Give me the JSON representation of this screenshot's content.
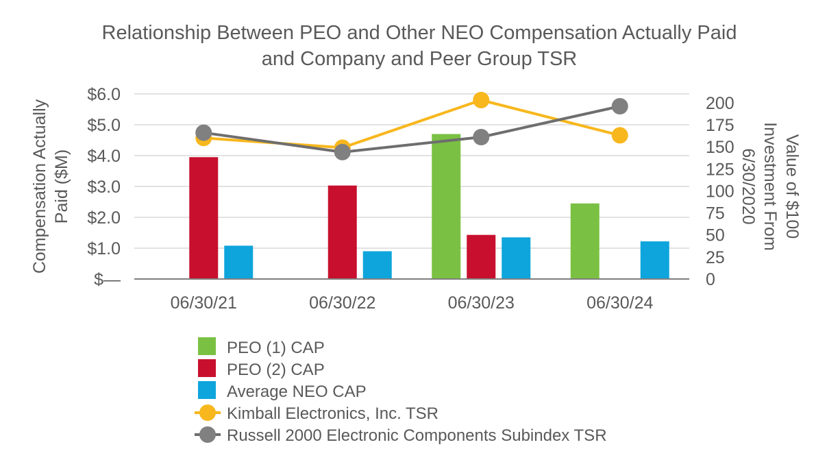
{
  "chart_data": {
    "type": "bar",
    "title_lines": [
      "Relationship Between PEO and Other NEO Compensation Actually Paid",
      "and Company and Peer Group TSR"
    ],
    "categories": [
      "06/30/21",
      "06/30/22",
      "06/30/23",
      "06/30/24"
    ],
    "y_left": {
      "label_lines": [
        "Compensation Actually",
        "Paid ($M)"
      ],
      "ylim": [
        0,
        6
      ],
      "ticks": [
        0,
        1,
        2,
        3,
        4,
        5,
        6
      ],
      "tick_labels": [
        "$—",
        "$1.0",
        "$2.0",
        "$3.0",
        "$4.0",
        "$5.0",
        "$6.0"
      ]
    },
    "y_right": {
      "label_lines": [
        "Value of $100",
        "Investment From",
        "6/30/2020"
      ],
      "ylim": [
        0,
        210
      ],
      "ticks": [
        0,
        25,
        50,
        75,
        100,
        125,
        150,
        175,
        200
      ],
      "tick_labels": [
        "0",
        "25",
        "50",
        "75",
        "100",
        "125",
        "150",
        "175",
        "200"
      ]
    },
    "bar_series": [
      {
        "name": "PEO (1) CAP",
        "color": "#7AC143",
        "values": [
          null,
          null,
          4.7,
          2.45
        ]
      },
      {
        "name": "PEO (2) CAP",
        "color": "#C8102E",
        "values": [
          3.95,
          3.03,
          1.43,
          null
        ]
      },
      {
        "name": "Average NEO CAP",
        "color": "#0EA5DC",
        "values": [
          1.08,
          0.9,
          1.35,
          1.22
        ]
      }
    ],
    "line_series": [
      {
        "name": "Kimball Electronics, Inc. TSR",
        "color": "#F7B71D",
        "axis": "right",
        "values": [
          160,
          149,
          203,
          163
        ]
      },
      {
        "name": "Russell 2000 Electronic Components Subindex TSR",
        "color": "#808080",
        "line_color": "#6E6E6E",
        "axis": "right",
        "values": [
          166,
          144,
          161,
          196
        ]
      }
    ],
    "grid": true,
    "legend_position": "bottom"
  }
}
